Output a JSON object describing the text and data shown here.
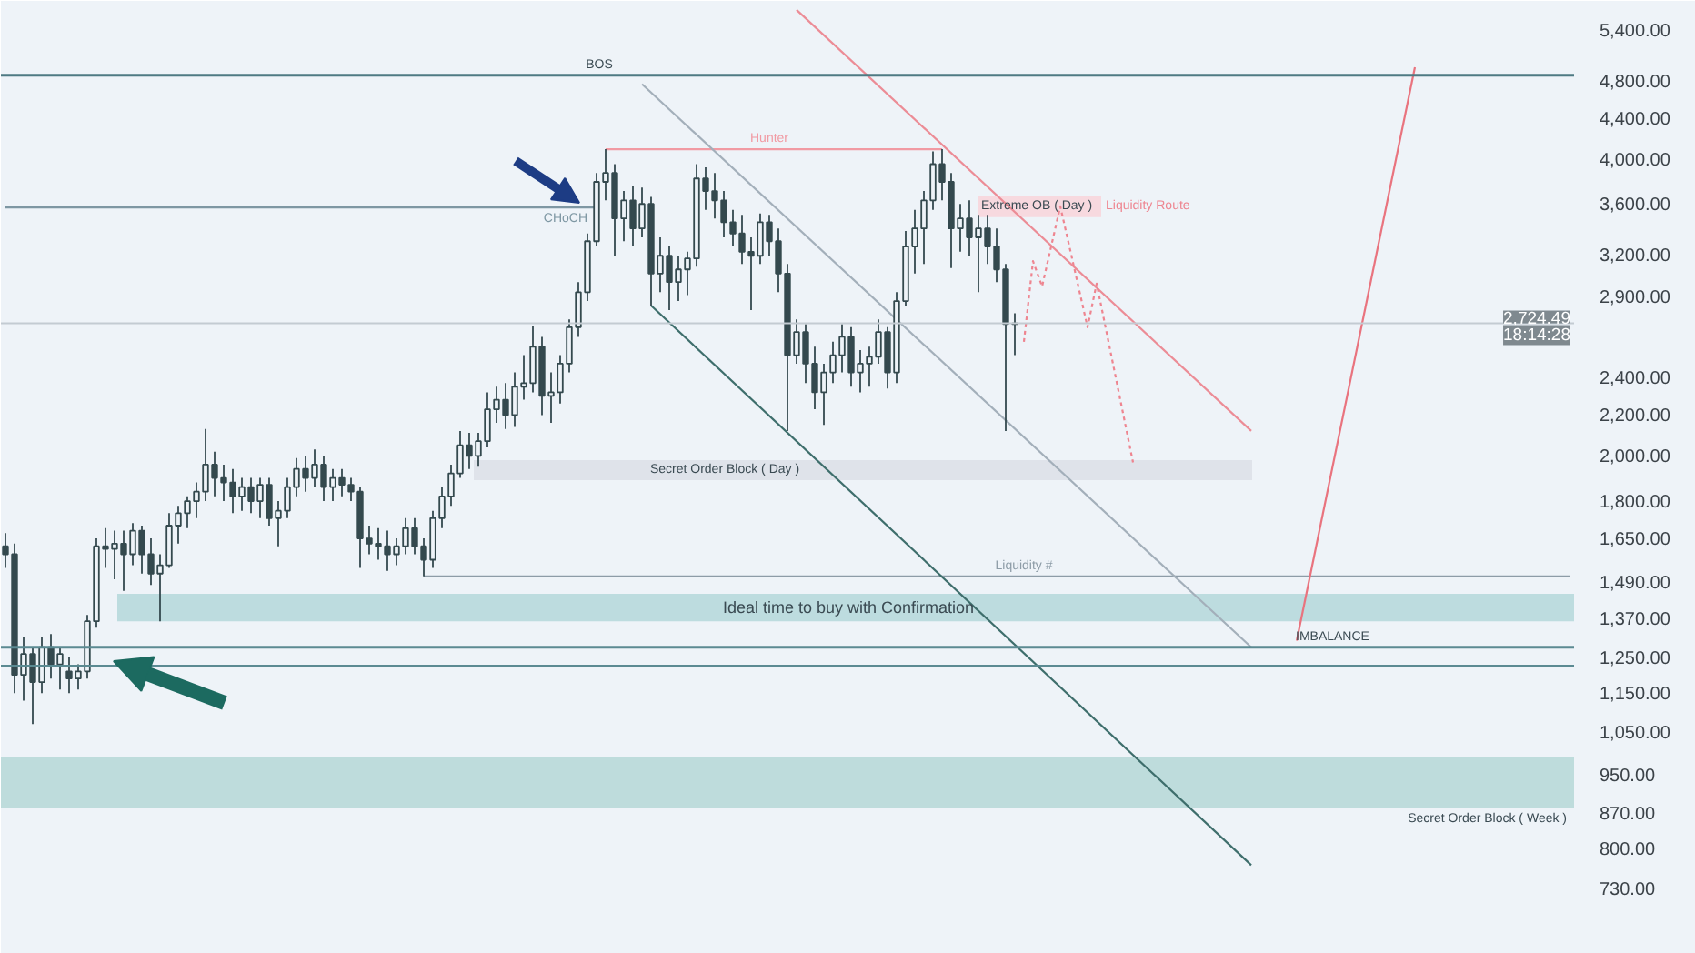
{
  "chart_data": {
    "type": "candlestick",
    "annotations": [
      "18:14:28"
    ],
    "categories": [
      null,
      null,
      null,
      null,
      null,
      null,
      null,
      null,
      null,
      null,
      null,
      null,
      null,
      null,
      null,
      null,
      null,
      null,
      null,
      null,
      null,
      null,
      null,
      null,
      null,
      null,
      null,
      null,
      null,
      null,
      null,
      null,
      null,
      null,
      null,
      null,
      null,
      null,
      null,
      null,
      null,
      null,
      null,
      null,
      null,
      null,
      null,
      null,
      null,
      null,
      null,
      null,
      null,
      null,
      null,
      null,
      null,
      null,
      null,
      null,
      null,
      null,
      null,
      null,
      null,
      null,
      null,
      null,
      null,
      null,
      null,
      null,
      null,
      null,
      null,
      null,
      null,
      null,
      null,
      null,
      null,
      null,
      null,
      null,
      null,
      null,
      null,
      null,
      null,
      null,
      null,
      null,
      null,
      null,
      null,
      null,
      null,
      null,
      null,
      null,
      null,
      null,
      null,
      null,
      null,
      null,
      null,
      null,
      null,
      null,
      null,
      null,
      null,
      null,
      null,
      null,
      null,
      null,
      null,
      null,
      null,
      null,
      null,
      null,
      null,
      null,
      null,
      null,
      null,
      null,
      null,
      null,
      null,
      null,
      null,
      null,
      null,
      null,
      null,
      null,
      null,
      null,
      null,
      null,
      null,
      null,
      null,
      null,
      null,
      null,
      null,
      null,
      null,
      null,
      null,
      null,
      null,
      null,
      null,
      null,
      null,
      null,
      null,
      null,
      null,
      null,
      null,
      null,
      null,
      null,
      null,
      null,
      null
    ],
    "ylim": [
      626,
      5780
    ],
    "yticks": [
      {
        "value": 5400,
        "label": "5,400.00"
      },
      {
        "value": 4800,
        "label": "4,800.00"
      },
      {
        "value": 4400,
        "label": "4,400.00"
      },
      {
        "value": 4000,
        "label": "4,000.00"
      },
      {
        "value": 3600,
        "label": "3,600.00"
      },
      {
        "value": 3200,
        "label": "3,200.00"
      },
      {
        "value": 2900,
        "label": "2,900.00"
      },
      {
        "value": 2400,
        "label": "2,400.00"
      },
      {
        "value": 2200,
        "label": "2,200.00"
      },
      {
        "value": 2000,
        "label": "2,000.00"
      },
      {
        "value": 1800,
        "label": "1,800.00"
      },
      {
        "value": 1650,
        "label": "1,650.00"
      },
      {
        "value": 1490,
        "label": "1,490.00"
      },
      {
        "value": 1370,
        "label": "1,370.00"
      },
      {
        "value": 1250,
        "label": "1,250.00"
      },
      {
        "value": 1150,
        "label": "1,150.00"
      },
      {
        "value": 1050,
        "label": "1,050.00"
      },
      {
        "value": 950,
        "label": "950.00"
      },
      {
        "value": 870,
        "label": "870.00"
      },
      {
        "value": 800,
        "label": "800.00"
      },
      {
        "value": 730,
        "label": "730.00"
      }
    ],
    "log": true,
    "tick_labels": "y",
    "color": "#34494e",
    "ohlc": [
      [
        1620,
        1670,
        1540,
        1590
      ],
      [
        1590,
        1630,
        1150,
        1200
      ],
      [
        1200,
        1310,
        1130,
        1260
      ],
      [
        1260,
        1280,
        1070,
        1180
      ],
      [
        1180,
        1310,
        1150,
        1280
      ],
      [
        1280,
        1320,
        1190,
        1230
      ],
      [
        1230,
        1280,
        1160,
        1260
      ],
      [
        1210,
        1250,
        1150,
        1190
      ],
      [
        1190,
        1230,
        1160,
        1210
      ],
      [
        1210,
        1380,
        1190,
        1360
      ],
      [
        1360,
        1650,
        1340,
        1620
      ],
      [
        1620,
        1690,
        1540,
        1610
      ],
      [
        1610,
        1680,
        1500,
        1630
      ],
      [
        1630,
        1680,
        1460,
        1590
      ],
      [
        1590,
        1710,
        1550,
        1680
      ],
      [
        1680,
        1700,
        1520,
        1590
      ],
      [
        1590,
        1650,
        1480,
        1520
      ],
      [
        1520,
        1590,
        1360,
        1550
      ],
      [
        1550,
        1750,
        1540,
        1700
      ],
      [
        1700,
        1780,
        1630,
        1750
      ],
      [
        1750,
        1820,
        1690,
        1800
      ],
      [
        1800,
        1880,
        1730,
        1840
      ],
      [
        1840,
        2130,
        1800,
        1960
      ],
      [
        1960,
        2020,
        1820,
        1900
      ],
      [
        1900,
        1960,
        1800,
        1880
      ],
      [
        1880,
        1940,
        1750,
        1820
      ],
      [
        1820,
        1900,
        1760,
        1860
      ],
      [
        1860,
        1900,
        1750,
        1800
      ],
      [
        1800,
        1900,
        1730,
        1870
      ],
      [
        1870,
        1900,
        1700,
        1730
      ],
      [
        1730,
        1800,
        1620,
        1760
      ],
      [
        1760,
        1900,
        1730,
        1860
      ],
      [
        1860,
        1990,
        1820,
        1940
      ],
      [
        1940,
        2000,
        1840,
        1900
      ],
      [
        1900,
        2030,
        1860,
        1960
      ],
      [
        1960,
        2000,
        1800,
        1860
      ],
      [
        1860,
        1940,
        1800,
        1900
      ],
      [
        1900,
        1940,
        1820,
        1870
      ],
      [
        1870,
        1900,
        1800,
        1840
      ],
      [
        1840,
        1860,
        1540,
        1650
      ],
      [
        1650,
        1700,
        1590,
        1630
      ],
      [
        1630,
        1690,
        1570,
        1620
      ],
      [
        1620,
        1680,
        1530,
        1590
      ],
      [
        1590,
        1650,
        1550,
        1620
      ],
      [
        1620,
        1730,
        1590,
        1690
      ],
      [
        1690,
        1730,
        1590,
        1620
      ],
      [
        1620,
        1650,
        1510,
        1570
      ],
      [
        1570,
        1760,
        1540,
        1730
      ],
      [
        1730,
        1860,
        1690,
        1820
      ],
      [
        1820,
        1960,
        1780,
        1920
      ],
      [
        1920,
        2120,
        1900,
        2050
      ],
      [
        2050,
        2110,
        1940,
        2000
      ],
      [
        2000,
        2110,
        1950,
        2070
      ],
      [
        2070,
        2320,
        2040,
        2230
      ],
      [
        2230,
        2350,
        2160,
        2280
      ],
      [
        2280,
        2370,
        2130,
        2200
      ],
      [
        2200,
        2430,
        2140,
        2350
      ],
      [
        2350,
        2530,
        2280,
        2370
      ],
      [
        2370,
        2710,
        2320,
        2580
      ],
      [
        2580,
        2640,
        2200,
        2300
      ],
      [
        2300,
        2430,
        2160,
        2320
      ],
      [
        2320,
        2530,
        2260,
        2480
      ],
      [
        2480,
        2750,
        2430,
        2700
      ],
      [
        2700,
        3000,
        2640,
        2930
      ],
      [
        2930,
        3360,
        2870,
        3300
      ],
      [
        3300,
        3870,
        3260,
        3790
      ],
      [
        3790,
        4090,
        3630,
        3870
      ],
      [
        3870,
        3950,
        3190,
        3480
      ],
      [
        3480,
        3710,
        3300,
        3630
      ],
      [
        3630,
        3750,
        3260,
        3400
      ],
      [
        3400,
        3740,
        3330,
        3600
      ],
      [
        3600,
        3660,
        2840,
        3060
      ],
      [
        3060,
        3330,
        2930,
        3190
      ],
      [
        3190,
        3260,
        2810,
        3000
      ],
      [
        3000,
        3190,
        2870,
        3090
      ],
      [
        3090,
        3220,
        2910,
        3170
      ],
      [
        3170,
        3950,
        3110,
        3820
      ],
      [
        3820,
        3920,
        3550,
        3710
      ],
      [
        3710,
        3870,
        3480,
        3630
      ],
      [
        3630,
        3710,
        3330,
        3450
      ],
      [
        3450,
        3550,
        3260,
        3360
      ],
      [
        3360,
        3510,
        3130,
        3220
      ],
      [
        3220,
        3330,
        2810,
        3190
      ],
      [
        3190,
        3520,
        3130,
        3450
      ],
      [
        3450,
        3510,
        3190,
        3300
      ],
      [
        3300,
        3400,
        2930,
        3060
      ],
      [
        3060,
        3130,
        2120,
        2530
      ],
      [
        2530,
        2750,
        2480,
        2670
      ],
      [
        2670,
        2720,
        2370,
        2480
      ],
      [
        2480,
        2580,
        2230,
        2320
      ],
      [
        2320,
        2480,
        2150,
        2430
      ],
      [
        2430,
        2610,
        2370,
        2530
      ],
      [
        2530,
        2720,
        2430,
        2640
      ],
      [
        2640,
        2700,
        2350,
        2430
      ],
      [
        2430,
        2560,
        2320,
        2480
      ],
      [
        2480,
        2580,
        2350,
        2520
      ],
      [
        2520,
        2750,
        2480,
        2670
      ],
      [
        2670,
        2700,
        2340,
        2430
      ],
      [
        2430,
        2930,
        2370,
        2870
      ],
      [
        2870,
        3380,
        2840,
        3260
      ],
      [
        3260,
        3550,
        3060,
        3400
      ],
      [
        3400,
        3710,
        3130,
        3630
      ],
      [
        3630,
        4070,
        3550,
        3950
      ],
      [
        3950,
        4090,
        3630,
        3790
      ],
      [
        3790,
        3870,
        3100,
        3400
      ],
      [
        3400,
        3600,
        3220,
        3480
      ],
      [
        3480,
        3630,
        3190,
        3330
      ],
      [
        3330,
        3510,
        2930,
        3400
      ],
      [
        3400,
        3510,
        3130,
        3260
      ],
      [
        3260,
        3400,
        3000,
        3090
      ],
      [
        3090,
        3130,
        2120,
        2720
      ],
      [
        2720,
        2790,
        2530,
        2724.49
      ],
      null,
      null,
      null,
      null,
      null,
      null,
      null,
      null,
      null,
      null,
      null,
      null,
      null,
      null,
      null,
      null,
      null,
      null,
      null,
      null,
      null,
      null,
      null,
      null,
      null,
      null,
      null,
      null,
      null,
      null,
      null,
      null,
      null,
      null,
      null,
      null,
      null,
      null,
      null,
      null,
      null,
      null,
      null,
      null,
      null,
      null,
      null,
      null,
      null,
      null,
      null,
      null,
      null,
      null,
      null,
      null,
      null,
      null,
      null,
      null,
      null
    ],
    "series": [
      {
        "type": "line",
        "name": "CHoCH",
        "color": "#7e97a3",
        "values": [
          3570,
          3570,
          3570,
          3570,
          3570,
          3570,
          3570,
          3570,
          3570,
          3570,
          3570,
          3570,
          3570,
          3570,
          3570,
          3570,
          3570,
          3570,
          3570,
          3570,
          3570,
          3570,
          3570,
          3570,
          3570,
          3570,
          3570,
          3570,
          3570,
          3570,
          3570,
          3570,
          3570,
          3570,
          3570,
          3570,
          3570,
          3570,
          3570,
          3570,
          3570,
          3570,
          3570,
          3570,
          3570,
          3570,
          3570,
          3570,
          3570,
          3570,
          3570,
          3570,
          3570,
          3570,
          3570,
          3570,
          3570,
          3570,
          3570,
          3570,
          3570,
          3570,
          3570,
          3570,
          3570,
          3570,
          null,
          null,
          null,
          null,
          null,
          null,
          null,
          null,
          null,
          null,
          null,
          null,
          null,
          null,
          null,
          null,
          null,
          null,
          null,
          null,
          null,
          null,
          null,
          null,
          null,
          null,
          null,
          null,
          null,
          null,
          null,
          null,
          null,
          null,
          null,
          null,
          null,
          null,
          null,
          null,
          null,
          null,
          null,
          null,
          null,
          null,
          null,
          null,
          null,
          null,
          null,
          null,
          null,
          null,
          null,
          null,
          null,
          null,
          null,
          null,
          null,
          null,
          null,
          null,
          null,
          null,
          null,
          null,
          null,
          null,
          null,
          null,
          null,
          null,
          null,
          null,
          null,
          null,
          null,
          null,
          null,
          null,
          null,
          null,
          null,
          null,
          null,
          null,
          null,
          null,
          null,
          null,
          null,
          null,
          null,
          null,
          null,
          null,
          null,
          null,
          null,
          null,
          null,
          null,
          null,
          null,
          null
        ]
      },
      {
        "type": "line",
        "name": "Hunter",
        "color": "#f19aa3",
        "values": [
          null,
          null,
          null,
          null,
          null,
          null,
          null,
          null,
          null,
          null,
          null,
          null,
          null,
          null,
          null,
          null,
          null,
          null,
          null,
          null,
          null,
          null,
          null,
          null,
          null,
          null,
          null,
          null,
          null,
          null,
          null,
          null,
          null,
          null,
          null,
          null,
          null,
          null,
          null,
          null,
          null,
          null,
          null,
          null,
          null,
          null,
          null,
          null,
          null,
          null,
          null,
          null,
          null,
          null,
          null,
          null,
          null,
          null,
          null,
          null,
          null,
          null,
          null,
          null,
          null,
          null,
          4090,
          4090,
          4090,
          4090,
          4090,
          4090,
          4090,
          4090,
          4090,
          4090,
          4090,
          4090,
          4090,
          4090,
          4090,
          4090,
          4090,
          4090,
          4090,
          4090,
          4090,
          4090,
          4090,
          4090,
          4090,
          4090,
          4090,
          4090,
          4090,
          4090,
          4090,
          4090,
          4090,
          4090,
          4090,
          4090,
          4090,
          4090,
          null,
          null,
          null,
          null,
          null,
          null,
          null,
          null,
          null,
          null,
          null,
          null,
          null,
          null,
          null,
          null,
          null,
          null,
          null,
          null,
          null,
          null,
          null,
          null,
          null,
          null,
          null,
          null,
          null,
          null,
          null,
          null,
          null,
          null,
          null,
          null,
          null,
          null,
          null,
          null,
          null,
          null,
          null,
          null,
          null,
          null,
          null,
          null,
          null,
          null,
          null,
          null,
          null,
          null,
          null,
          null,
          null,
          null,
          null,
          null,
          null,
          null,
          null,
          null,
          null,
          null,
          null,
          null,
          null
        ]
      },
      {
        "type": "line",
        "name": "Liquidity #",
        "color": "#8d9ca7",
        "values": [
          null,
          null,
          null,
          null,
          null,
          null,
          null,
          null,
          null,
          null,
          null,
          null,
          null,
          null,
          null,
          null,
          null,
          null,
          null,
          null,
          null,
          null,
          null,
          null,
          null,
          null,
          null,
          null,
          null,
          null,
          null,
          null,
          null,
          null,
          null,
          null,
          null,
          null,
          null,
          null,
          null,
          null,
          null,
          null,
          null,
          null,
          1510,
          1510,
          1510,
          1510,
          1510,
          1510,
          1510,
          1510,
          1510,
          1510,
          1510,
          1510,
          1510,
          1510,
          1510,
          1510,
          1510,
          1510,
          1510,
          1510,
          1510,
          1510,
          1510,
          1510,
          1510,
          1510,
          1510,
          1510,
          1510,
          1510,
          1510,
          1510,
          1510,
          1510,
          1510,
          1510,
          1510,
          1510,
          1510,
          1510,
          1510,
          1510,
          1510,
          1510,
          1510,
          1510,
          1510,
          1510,
          1510,
          1510,
          1510,
          1510,
          1510,
          1510,
          1510,
          1510,
          1510,
          1510,
          1510,
          1510,
          1510,
          1510,
          1510,
          1510,
          1510,
          1510,
          1510,
          1510,
          1510,
          1510,
          1510,
          1510,
          1510,
          1510,
          1510,
          1510,
          1510,
          1510,
          1510,
          1510,
          1510,
          1510,
          1510,
          1510,
          1510,
          1510,
          1510,
          1510,
          1510,
          1510,
          1510,
          1510,
          1510,
          1510,
          1510,
          1510,
          1510,
          1510,
          1510,
          1510,
          1510,
          1510,
          1510,
          1510,
          1510,
          1510,
          1510,
          1510,
          1510,
          1510,
          1510,
          1510,
          1510,
          1510,
          1510,
          1510,
          1510,
          1510,
          1510,
          1510,
          1510,
          1510,
          1510,
          1510,
          1510,
          1510,
          1510
        ]
      },
      {
        "type": "line",
        "color": "#3e6e6c",
        "values": [
          null,
          null,
          null,
          null,
          null,
          null,
          null,
          null,
          null,
          null,
          null,
          null,
          null,
          null,
          null,
          null,
          null,
          null,
          null,
          null,
          null,
          null,
          null,
          null,
          null,
          null,
          null,
          null,
          null,
          null,
          null,
          null,
          null,
          null,
          null,
          null,
          null,
          null,
          null,
          null,
          null,
          null,
          null,
          null,
          null,
          null,
          null,
          null,
          null,
          null,
          null,
          null,
          null,
          null,
          null,
          null,
          null,
          null,
          null,
          null,
          null,
          null,
          null,
          null,
          null,
          null,
          null,
          null,
          null,
          null,
          null,
          2840,
          null,
          null,
          null,
          null,
          null,
          null,
          null,
          null,
          null,
          null,
          null,
          null,
          null,
          null,
          null,
          null,
          null,
          null,
          null,
          null,
          null,
          null,
          null,
          null,
          null,
          null,
          null,
          null,
          null,
          null,
          null,
          null,
          null,
          null,
          null,
          null,
          null,
          null,
          null,
          null,
          null,
          null,
          null,
          null,
          null,
          null,
          null,
          null,
          null,
          null,
          null,
          null,
          null,
          null,
          null,
          null,
          null,
          null,
          null,
          null,
          null,
          null,
          null,
          null,
          null,
          770,
          null,
          null,
          null,
          null,
          null,
          null,
          null,
          null,
          null,
          null,
          null,
          null,
          null,
          null,
          null,
          null,
          null,
          null,
          null,
          null,
          null,
          null,
          null,
          null,
          null,
          null,
          null,
          null,
          null,
          null,
          null,
          null,
          null,
          null,
          null
        ]
      },
      {
        "type": "line",
        "color": "#a3afba",
        "values": [
          null,
          null,
          null,
          null,
          null,
          null,
          null,
          null,
          null,
          null,
          null,
          null,
          null,
          null,
          null,
          null,
          null,
          null,
          null,
          null,
          null,
          null,
          null,
          null,
          null,
          null,
          null,
          null,
          null,
          null,
          null,
          null,
          null,
          null,
          null,
          null,
          null,
          null,
          null,
          null,
          null,
          null,
          null,
          null,
          null,
          null,
          null,
          null,
          null,
          null,
          null,
          null,
          null,
          null,
          null,
          null,
          null,
          null,
          null,
          null,
          null,
          null,
          null,
          null,
          null,
          null,
          null,
          null,
          null,
          null,
          4760,
          null,
          null,
          null,
          null,
          null,
          null,
          null,
          null,
          null,
          null,
          null,
          null,
          null,
          null,
          null,
          null,
          null,
          null,
          null,
          null,
          null,
          null,
          null,
          null,
          null,
          null,
          null,
          null,
          null,
          null,
          null,
          null,
          null,
          null,
          null,
          null,
          null,
          null,
          null,
          null,
          null,
          null,
          null,
          null,
          null,
          null,
          null,
          null,
          null,
          null,
          null,
          null,
          null,
          null,
          null,
          null,
          null,
          null,
          null,
          null,
          null,
          null,
          null,
          null,
          null,
          null,
          1280,
          null,
          null,
          null,
          null,
          null,
          null,
          null,
          null,
          null,
          null,
          null,
          null,
          null,
          null,
          null,
          null,
          null,
          null,
          null,
          null,
          null,
          null,
          null,
          null,
          null,
          null,
          null,
          null,
          null,
          null,
          null,
          null,
          null,
          null,
          null
        ]
      },
      {
        "type": "line",
        "color": "#ec8c96",
        "values": [
          null,
          null,
          null,
          null,
          null,
          null,
          null,
          null,
          null,
          null,
          null,
          null,
          null,
          null,
          null,
          null,
          null,
          null,
          null,
          null,
          null,
          null,
          null,
          null,
          null,
          null,
          null,
          null,
          null,
          null,
          null,
          null,
          null,
          null,
          null,
          null,
          null,
          null,
          null,
          null,
          null,
          null,
          null,
          null,
          null,
          null,
          null,
          null,
          null,
          null,
          null,
          null,
          null,
          null,
          null,
          null,
          null,
          null,
          null,
          null,
          null,
          null,
          null,
          null,
          null,
          null,
          null,
          null,
          null,
          null,
          null,
          null,
          null,
          null,
          null,
          null,
          null,
          null,
          null,
          null,
          null,
          null,
          null,
          null,
          null,
          null,
          null,
          5660,
          null,
          null,
          null,
          null,
          null,
          null,
          null,
          null,
          null,
          null,
          null,
          null,
          null,
          null,
          null,
          null,
          null,
          null,
          null,
          null,
          null,
          null,
          null,
          null,
          null,
          null,
          null,
          null,
          null,
          null,
          null,
          null,
          null,
          null,
          null,
          null,
          null,
          null,
          null,
          null,
          null,
          null,
          null,
          null,
          null,
          null,
          null,
          null,
          null,
          2120,
          null,
          null,
          null,
          null,
          null,
          null,
          null,
          null,
          null,
          null,
          null,
          null,
          null,
          null,
          null,
          null,
          null,
          null,
          null,
          null,
          null,
          null,
          null,
          null,
          null,
          null,
          null,
          null,
          null,
          null,
          null,
          null,
          null,
          null,
          null
        ]
      },
      {
        "type": "line",
        "name": "Liquidity Route",
        "color": "#ee8590",
        "line_style": "dotted",
        "values": [
          null,
          null,
          null,
          null,
          null,
          null,
          null,
          null,
          null,
          null,
          null,
          null,
          null,
          null,
          null,
          null,
          null,
          null,
          null,
          null,
          null,
          null,
          null,
          null,
          null,
          null,
          null,
          null,
          null,
          null,
          null,
          null,
          null,
          null,
          null,
          null,
          null,
          null,
          null,
          null,
          null,
          null,
          null,
          null,
          null,
          null,
          null,
          null,
          null,
          null,
          null,
          null,
          null,
          null,
          null,
          null,
          null,
          null,
          null,
          null,
          null,
          null,
          null,
          null,
          null,
          null,
          null,
          null,
          null,
          null,
          null,
          null,
          null,
          null,
          null,
          null,
          null,
          null,
          null,
          null,
          null,
          null,
          null,
          null,
          null,
          null,
          null,
          null,
          null,
          null,
          null,
          null,
          null,
          null,
          null,
          null,
          null,
          null,
          null,
          null,
          null,
          null,
          null,
          null,
          null,
          null,
          null,
          null,
          null,
          null,
          null,
          null,
          2610,
          3150,
          2970,
          null,
          3580,
          3260,
          null,
          2700,
          2990,
          null,
          null,
          null,
          1970,
          null,
          null,
          null,
          null,
          null,
          null,
          null,
          null,
          null,
          null,
          null,
          null,
          null,
          null,
          null,
          null,
          null,
          null,
          null,
          null,
          null,
          null,
          null,
          null,
          null,
          null,
          null,
          null,
          null,
          null,
          null,
          null,
          null,
          null,
          null,
          null,
          null,
          null,
          null,
          null,
          null,
          null,
          null,
          null,
          null,
          null,
          null,
          null
        ]
      },
      {
        "type": "line",
        "color": "#e9737e",
        "values": [
          null,
          null,
          null,
          null,
          null,
          null,
          null,
          null,
          null,
          null,
          null,
          null,
          null,
          null,
          null,
          null,
          null,
          null,
          null,
          null,
          null,
          null,
          null,
          null,
          null,
          null,
          null,
          null,
          null,
          null,
          null,
          null,
          null,
          null,
          null,
          null,
          null,
          null,
          null,
          null,
          null,
          null,
          null,
          null,
          null,
          null,
          null,
          null,
          null,
          null,
          null,
          null,
          null,
          null,
          null,
          null,
          null,
          null,
          null,
          null,
          null,
          null,
          null,
          null,
          null,
          null,
          null,
          null,
          null,
          null,
          null,
          null,
          null,
          null,
          null,
          null,
          null,
          null,
          null,
          null,
          null,
          null,
          null,
          null,
          null,
          null,
          null,
          null,
          null,
          null,
          null,
          null,
          null,
          null,
          null,
          null,
          null,
          null,
          null,
          null,
          null,
          null,
          null,
          null,
          null,
          null,
          null,
          null,
          null,
          null,
          null,
          null,
          null,
          null,
          null,
          null,
          null,
          null,
          null,
          null,
          null,
          null,
          null,
          null,
          null,
          null,
          null,
          null,
          null,
          null,
          null,
          null,
          null,
          null,
          null,
          null,
          null,
          null,
          null,
          null,
          null,
          null,
          1300,
          null,
          null,
          null,
          null,
          null,
          null,
          null,
          null,
          null,
          null,
          null,
          null,
          4950,
          null,
          null,
          null,
          null,
          null,
          null,
          null,
          null,
          null,
          null,
          null,
          null,
          null,
          null,
          null,
          null,
          null
        ]
      }
    ],
    "ref_lines": [
      {
        "axis": "y",
        "value": 4860,
        "label": "BOS",
        "color": "#4e7a83"
      },
      {
        "axis": "y",
        "value": 2724.49,
        "label": "2,724.49",
        "color": "#c3cbd2"
      },
      {
        "axis": "y",
        "value": 1280,
        "label": "IMBALANCE",
        "color": "#5b8a92"
      },
      {
        "axis": "y",
        "value": 1225,
        "color": "#5b8a92"
      }
    ],
    "bands": [
      {
        "axis": "y",
        "from": 1360,
        "to": 1450,
        "label": "Ideal time to buy with Confirmation",
        "color": "#bddcdf"
      },
      {
        "axis": "y",
        "from": 1890,
        "to": 1980,
        "label": "Secret Order Block ( Day )",
        "color": "#dfe3ea"
      },
      {
        "axis": "y",
        "from": 880,
        "to": 990,
        "label": "Secret Order Block ( Week )",
        "color": "#bedcdc"
      },
      {
        "axis": "y",
        "from": 3490,
        "to": 3670,
        "label": "Extreme OB ( Day )",
        "color": "#f7d9df"
      }
    ]
  }
}
